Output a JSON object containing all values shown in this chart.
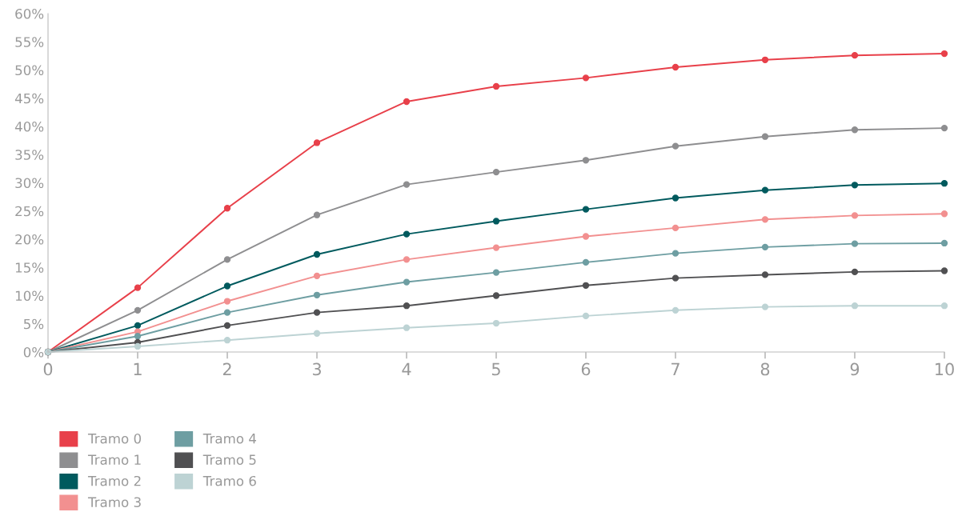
{
  "chart_data": {
    "type": "line",
    "x": [
      0,
      1,
      2,
      3,
      4,
      5,
      6,
      7,
      8,
      9,
      10
    ],
    "xlim": [
      0,
      10
    ],
    "xticks": [
      0,
      1,
      2,
      3,
      4,
      5,
      6,
      7,
      8,
      9,
      10
    ],
    "ylim": [
      0,
      60
    ],
    "yticks": [
      {
        "value": 0,
        "label": "0%"
      },
      {
        "value": 5,
        "label": "5%"
      },
      {
        "value": 10,
        "label": "10%"
      },
      {
        "value": 15,
        "label": "15%"
      },
      {
        "value": 20,
        "label": "20%"
      },
      {
        "value": 25,
        "label": "25%"
      },
      {
        "value": 30,
        "label": "30%"
      },
      {
        "value": 35,
        "label": "35%"
      },
      {
        "value": 40,
        "label": "40%"
      },
      {
        "value": 45,
        "label": "45%"
      },
      {
        "value": 50,
        "label": "50%"
      },
      {
        "value": 55,
        "label": "55%"
      },
      {
        "value": 60,
        "label": "60%"
      }
    ],
    "grid": false,
    "legend": "bottom left",
    "marker": "circle",
    "line_style": "solid",
    "series": [
      {
        "name": "Tramo 0",
        "color": "#e8404a",
        "values": [
          0,
          11.4,
          25.5,
          37.1,
          44.4,
          47.1,
          48.6,
          50.5,
          51.8,
          52.6,
          52.9
        ]
      },
      {
        "name": "Tramo 1",
        "color": "#8e8e90",
        "values": [
          0,
          7.4,
          16.4,
          24.3,
          29.7,
          31.9,
          34.0,
          36.5,
          38.2,
          39.4,
          39.7
        ]
      },
      {
        "name": "Tramo 2",
        "color": "#005a5e",
        "values": [
          0,
          4.7,
          11.7,
          17.3,
          20.9,
          23.2,
          25.3,
          27.3,
          28.7,
          29.6,
          29.9
        ]
      },
      {
        "name": "Tramo 3",
        "color": "#f29090",
        "values": [
          0,
          3.6,
          9.0,
          13.5,
          16.4,
          18.5,
          20.5,
          22.0,
          23.5,
          24.2,
          24.5
        ]
      },
      {
        "name": "Tramo 4",
        "color": "#6e9ea2",
        "values": [
          0,
          2.8,
          7.0,
          10.1,
          12.4,
          14.1,
          15.9,
          17.5,
          18.6,
          19.2,
          19.3
        ]
      },
      {
        "name": "Tramo 5",
        "color": "#505052",
        "values": [
          0,
          1.7,
          4.7,
          7.0,
          8.2,
          10.0,
          11.8,
          13.1,
          13.7,
          14.2,
          14.4
        ]
      },
      {
        "name": "Tramo 6",
        "color": "#bdd3d4",
        "values": [
          0,
          1.0,
          2.1,
          3.3,
          4.3,
          5.1,
          6.4,
          7.4,
          8.0,
          8.2,
          8.2
        ]
      }
    ]
  }
}
